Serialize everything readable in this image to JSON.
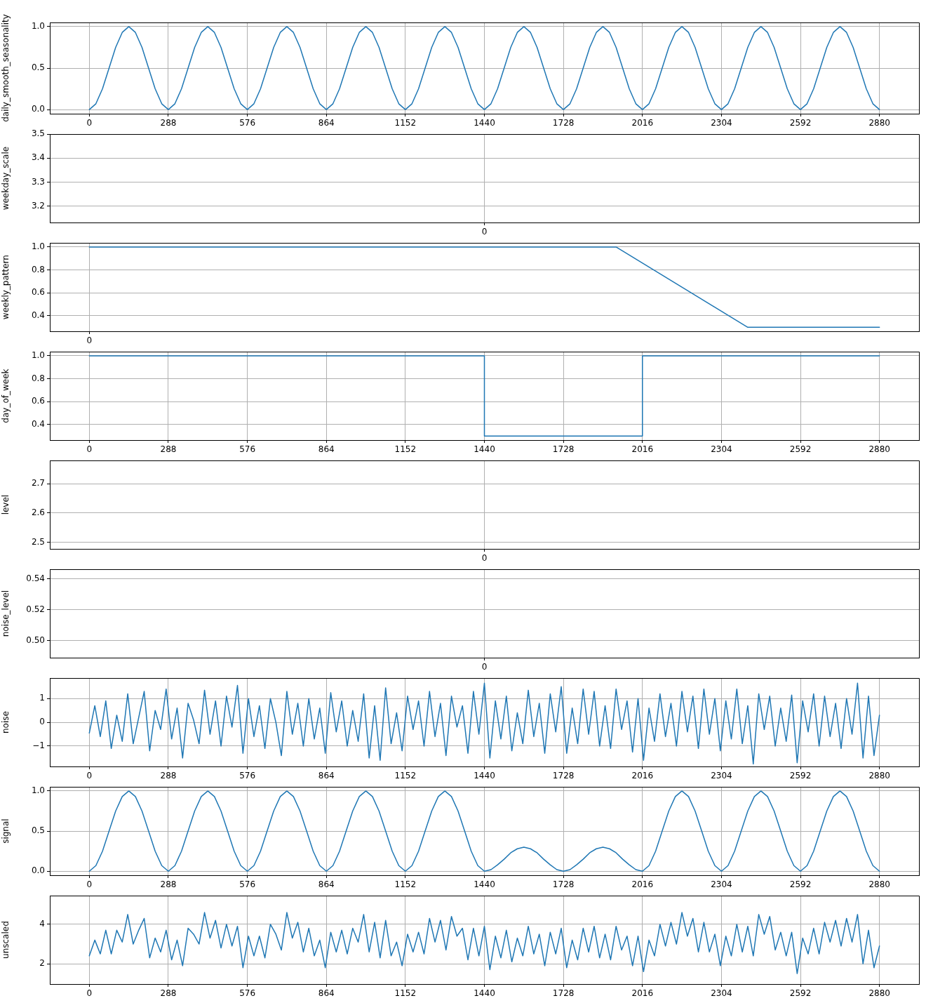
{
  "chart_data": [
    {
      "type": "line",
      "ylabel": "daily_smooth_seasonality",
      "color": "#1f77b4",
      "grid": true,
      "x": [
        0,
        24,
        48,
        72,
        96,
        120,
        144,
        168,
        192,
        216,
        240,
        264,
        288,
        312,
        336,
        360,
        384,
        408,
        432,
        456,
        480,
        504,
        528,
        552,
        576,
        600,
        624,
        648,
        672,
        696,
        720,
        744,
        768,
        792,
        816,
        840,
        864,
        888,
        912,
        936,
        960,
        984,
        1008,
        1032,
        1056,
        1080,
        1104,
        1128,
        1152,
        1176,
        1200,
        1224,
        1248,
        1272,
        1296,
        1320,
        1344,
        1368,
        1392,
        1416,
        1440,
        1464,
        1488,
        1512,
        1536,
        1560,
        1584,
        1608,
        1632,
        1656,
        1680,
        1704,
        1728,
        1752,
        1776,
        1800,
        1824,
        1848,
        1872,
        1896,
        1920,
        1944,
        1968,
        1992,
        2016,
        2040,
        2064,
        2088,
        2112,
        2136,
        2160,
        2184,
        2208,
        2232,
        2256,
        2280,
        2304,
        2328,
        2352,
        2376,
        2400,
        2424,
        2448,
        2472,
        2496,
        2520,
        2544,
        2568,
        2592,
        2616,
        2640,
        2664,
        2688,
        2712,
        2736,
        2760,
        2784,
        2808,
        2832,
        2856,
        2880
      ],
      "values": [
        0,
        0.07,
        0.25,
        0.5,
        0.75,
        0.93,
        1,
        0.93,
        0.75,
        0.5,
        0.25,
        0.07,
        0,
        0.07,
        0.25,
        0.5,
        0.75,
        0.93,
        1,
        0.93,
        0.75,
        0.5,
        0.25,
        0.07,
        0,
        0.07,
        0.25,
        0.5,
        0.75,
        0.93,
        1,
        0.93,
        0.75,
        0.5,
        0.25,
        0.07,
        0,
        0.07,
        0.25,
        0.5,
        0.75,
        0.93,
        1,
        0.93,
        0.75,
        0.5,
        0.25,
        0.07,
        0,
        0.07,
        0.25,
        0.5,
        0.75,
        0.93,
        1,
        0.93,
        0.75,
        0.5,
        0.25,
        0.07,
        0,
        0.07,
        0.25,
        0.5,
        0.75,
        0.93,
        1,
        0.93,
        0.75,
        0.5,
        0.25,
        0.07,
        0,
        0.07,
        0.25,
        0.5,
        0.75,
        0.93,
        1,
        0.93,
        0.75,
        0.5,
        0.25,
        0.07,
        0,
        0.07,
        0.25,
        0.5,
        0.75,
        0.93,
        1,
        0.93,
        0.75,
        0.5,
        0.25,
        0.07,
        0,
        0.07,
        0.25,
        0.5,
        0.75,
        0.93,
        1,
        0.93,
        0.75,
        0.5,
        0.25,
        0.07,
        0,
        0.07,
        0.25,
        0.5,
        0.75,
        0.93,
        1,
        0.93,
        0.75,
        0.5,
        0.25,
        0.07,
        0
      ],
      "xlim": [
        -144,
        3024
      ],
      "xticks": [
        0,
        288,
        576,
        864,
        1152,
        1440,
        1728,
        2016,
        2304,
        2592,
        2880
      ],
      "ylim": [
        -0.05,
        1.05
      ],
      "yticks": [
        {
          "value": 0,
          "label": "0.0"
        },
        {
          "value": 0.5,
          "label": "0.5"
        },
        {
          "value": 1,
          "label": "1.0"
        }
      ]
    },
    {
      "type": "line",
      "ylabel": "weekday_scale",
      "color": "#1f77b4",
      "grid": true,
      "categories": [
        "0"
      ],
      "ylim": [
        3.131,
        3.5
      ],
      "yticks": [
        3.2,
        3.3,
        3.4,
        3.5
      ]
    },
    {
      "type": "line",
      "ylabel": "weekly_pattern",
      "color": "#1f77b4",
      "grid": true,
      "categories": [
        "0",
        null,
        null,
        null,
        null,
        null,
        null,
        null,
        null,
        null,
        null,
        null,
        null
      ],
      "values": [
        1,
        1,
        1,
        1,
        1,
        1,
        1,
        1,
        1,
        0.65,
        0.3,
        0.3,
        0.3
      ],
      "ylim": [
        0.265,
        1.035
      ],
      "yticks": [
        0.4,
        0.6,
        0.8,
        {
          "value": 1,
          "label": "1.0"
        }
      ]
    },
    {
      "type": "step",
      "ylabel": "day_of_week",
      "color": "#1f77b4",
      "grid": true,
      "x": [
        0,
        1440,
        2016,
        2880
      ],
      "values": [
        1,
        0.3,
        1,
        1
      ],
      "xlim": [
        -144,
        3024
      ],
      "xticks": [
        0,
        288,
        576,
        864,
        1152,
        1440,
        1728,
        2016,
        2304,
        2592,
        2880
      ],
      "ylim": [
        0.265,
        1.035
      ],
      "yticks": [
        0.4,
        0.6,
        0.8,
        {
          "value": 1,
          "label": "1.0"
        }
      ]
    },
    {
      "type": "line",
      "ylabel": "level",
      "color": "#1f77b4",
      "grid": true,
      "categories": [
        "0"
      ],
      "ylim": [
        2.477,
        2.779
      ],
      "yticks": [
        2.5,
        2.6,
        2.7
      ]
    },
    {
      "type": "line",
      "ylabel": "noise_level",
      "color": "#1f77b4",
      "grid": true,
      "categories": [
        "0"
      ],
      "ylim": [
        0.489,
        0.546
      ],
      "yticks": [
        {
          "value": 0.5,
          "label": "0.50"
        },
        {
          "value": 0.52,
          "label": "0.52"
        },
        {
          "value": 0.54,
          "label": "0.54"
        }
      ]
    },
    {
      "type": "line",
      "ylabel": "noise",
      "color": "#1f77b4",
      "grid": true,
      "x": [
        0,
        20,
        40,
        60,
        80,
        100,
        120,
        140,
        160,
        180,
        200,
        220,
        240,
        260,
        280,
        300,
        320,
        340,
        360,
        380,
        400,
        420,
        440,
        460,
        480,
        500,
        520,
        540,
        560,
        580,
        600,
        620,
        640,
        660,
        680,
        700,
        720,
        740,
        760,
        780,
        800,
        820,
        840,
        860,
        880,
        900,
        920,
        940,
        960,
        980,
        1000,
        1020,
        1040,
        1060,
        1080,
        1100,
        1120,
        1140,
        1160,
        1180,
        1200,
        1220,
        1240,
        1260,
        1280,
        1300,
        1320,
        1340,
        1360,
        1380,
        1400,
        1420,
        1440,
        1460,
        1480,
        1500,
        1520,
        1540,
        1560,
        1580,
        1600,
        1620,
        1640,
        1660,
        1680,
        1700,
        1720,
        1740,
        1760,
        1780,
        1800,
        1820,
        1840,
        1860,
        1880,
        1900,
        1920,
        1940,
        1960,
        1980,
        2000,
        2020,
        2040,
        2060,
        2080,
        2100,
        2120,
        2140,
        2160,
        2180,
        2200,
        2220,
        2240,
        2260,
        2280,
        2300,
        2320,
        2340,
        2360,
        2380,
        2400,
        2420,
        2440,
        2460,
        2480,
        2500,
        2520,
        2540,
        2560,
        2580,
        2600,
        2620,
        2640,
        2660,
        2680,
        2700,
        2720,
        2740,
        2760,
        2780,
        2800,
        2820,
        2840,
        2860,
        2880
      ],
      "values": [
        -0.45,
        0.7,
        -0.6,
        0.9,
        -1.1,
        0.3,
        -0.8,
        1.2,
        -0.9,
        0.2,
        1.3,
        -1.2,
        0.5,
        -0.3,
        1.4,
        -0.7,
        0.6,
        -1.5,
        0.8,
        0.1,
        -0.9,
        1.35,
        -0.5,
        0.9,
        -1.0,
        1.1,
        -0.2,
        1.55,
        -1.3,
        1.0,
        -0.6,
        0.7,
        -1.1,
        1.0,
        0.0,
        -1.4,
        1.3,
        -0.5,
        0.8,
        -1.0,
        1.0,
        -0.7,
        0.6,
        -1.3,
        1.25,
        -0.4,
        0.9,
        -1.0,
        0.5,
        -0.8,
        1.2,
        -1.5,
        0.7,
        -1.6,
        1.45,
        -0.9,
        0.4,
        -1.2,
        1.1,
        -0.3,
        0.9,
        -1.0,
        1.3,
        -0.6,
        0.8,
        -1.4,
        1.1,
        -0.2,
        0.7,
        -1.3,
        1.3,
        -0.5,
        1.65,
        -1.5,
        0.9,
        -0.7,
        1.1,
        -1.2,
        0.4,
        -0.9,
        1.35,
        -0.6,
        0.8,
        -1.3,
        1.2,
        -0.4,
        1.5,
        -1.3,
        0.6,
        -0.9,
        1.4,
        -0.5,
        1.3,
        -1.0,
        0.7,
        -1.1,
        1.4,
        -0.3,
        0.9,
        -1.25,
        1.0,
        -1.6,
        0.6,
        -0.8,
        1.2,
        -0.6,
        0.8,
        -1.0,
        1.3,
        -0.4,
        1.1,
        -1.1,
        1.4,
        -0.5,
        1.0,
        -1.2,
        0.9,
        -0.7,
        1.4,
        -0.9,
        0.7,
        -1.75,
        1.2,
        -0.3,
        1.1,
        -1.0,
        0.6,
        -0.8,
        1.15,
        -1.7,
        0.9,
        -0.4,
        1.2,
        -1.0,
        1.1,
        -0.6,
        0.8,
        -1.1,
        1.0,
        -0.5,
        1.65,
        -1.5,
        1.1,
        -1.4,
        0.3
      ],
      "xlim": [
        -144,
        3024
      ],
      "xticks": [
        0,
        288,
        576,
        864,
        1152,
        1440,
        1728,
        2016,
        2304,
        2592,
        2880
      ],
      "ylim": [
        -1.857,
        1.857
      ],
      "yticks": [
        {
          "value": -1,
          "label": "−1"
        },
        0,
        1
      ]
    },
    {
      "type": "line",
      "ylabel": "signal",
      "color": "#1f77b4",
      "grid": true,
      "x": [
        0,
        24,
        48,
        72,
        96,
        120,
        144,
        168,
        192,
        216,
        240,
        264,
        288,
        312,
        336,
        360,
        384,
        408,
        432,
        456,
        480,
        504,
        528,
        552,
        576,
        600,
        624,
        648,
        672,
        696,
        720,
        744,
        768,
        792,
        816,
        840,
        864,
        888,
        912,
        936,
        960,
        984,
        1008,
        1032,
        1056,
        1080,
        1104,
        1128,
        1152,
        1176,
        1200,
        1224,
        1248,
        1272,
        1296,
        1320,
        1344,
        1368,
        1392,
        1416,
        1440,
        1464,
        1488,
        1512,
        1536,
        1560,
        1584,
        1608,
        1632,
        1656,
        1680,
        1704,
        1728,
        1752,
        1776,
        1800,
        1824,
        1848,
        1872,
        1896,
        1920,
        1944,
        1968,
        1992,
        2016,
        2040,
        2064,
        2088,
        2112,
        2136,
        2160,
        2184,
        2208,
        2232,
        2256,
        2280,
        2304,
        2328,
        2352,
        2376,
        2400,
        2424,
        2448,
        2472,
        2496,
        2520,
        2544,
        2568,
        2592,
        2616,
        2640,
        2664,
        2688,
        2712,
        2736,
        2760,
        2784,
        2808,
        2832,
        2856,
        2880
      ],
      "values": [
        0,
        0.07,
        0.25,
        0.5,
        0.75,
        0.93,
        1,
        0.93,
        0.75,
        0.5,
        0.25,
        0.07,
        0,
        0.07,
        0.25,
        0.5,
        0.75,
        0.93,
        1,
        0.93,
        0.75,
        0.5,
        0.25,
        0.07,
        0,
        0.07,
        0.25,
        0.5,
        0.75,
        0.93,
        1,
        0.93,
        0.75,
        0.5,
        0.25,
        0.07,
        0,
        0.07,
        0.25,
        0.5,
        0.75,
        0.93,
        1,
        0.93,
        0.75,
        0.5,
        0.25,
        0.07,
        0,
        0.07,
        0.25,
        0.5,
        0.75,
        0.93,
        1,
        0.93,
        0.75,
        0.5,
        0.25,
        0.07,
        0,
        0.02,
        0.08,
        0.15,
        0.23,
        0.28,
        0.3,
        0.28,
        0.23,
        0.15,
        0.08,
        0.02,
        0,
        0.02,
        0.08,
        0.15,
        0.23,
        0.28,
        0.3,
        0.28,
        0.23,
        0.15,
        0.08,
        0.02,
        0,
        0.07,
        0.25,
        0.5,
        0.75,
        0.93,
        1,
        0.93,
        0.75,
        0.5,
        0.25,
        0.07,
        0,
        0.07,
        0.25,
        0.5,
        0.75,
        0.93,
        1,
        0.93,
        0.75,
        0.5,
        0.25,
        0.07,
        0,
        0.07,
        0.25,
        0.5,
        0.75,
        0.93,
        1,
        0.93,
        0.75,
        0.5,
        0.25,
        0.07,
        0
      ],
      "xlim": [
        -144,
        3024
      ],
      "xticks": [
        0,
        288,
        576,
        864,
        1152,
        1440,
        1728,
        2016,
        2304,
        2592,
        2880
      ],
      "ylim": [
        -0.05,
        1.05
      ],
      "yticks": [
        {
          "value": 0,
          "label": "0.0"
        },
        {
          "value": 0.5,
          "label": "0.5"
        },
        {
          "value": 1,
          "label": "1.0"
        }
      ]
    },
    {
      "type": "line",
      "ylabel": "unscaled",
      "color": "#1f77b4",
      "grid": true,
      "x": [
        0,
        20,
        40,
        60,
        80,
        100,
        120,
        140,
        160,
        180,
        200,
        220,
        240,
        260,
        280,
        300,
        320,
        340,
        360,
        380,
        400,
        420,
        440,
        460,
        480,
        500,
        520,
        540,
        560,
        580,
        600,
        620,
        640,
        660,
        680,
        700,
        720,
        740,
        760,
        780,
        800,
        820,
        840,
        860,
        880,
        900,
        920,
        940,
        960,
        980,
        1000,
        1020,
        1040,
        1060,
        1080,
        1100,
        1120,
        1140,
        1160,
        1180,
        1200,
        1220,
        1240,
        1260,
        1280,
        1300,
        1320,
        1340,
        1360,
        1380,
        1400,
        1420,
        1440,
        1460,
        1480,
        1500,
        1520,
        1540,
        1560,
        1580,
        1600,
        1620,
        1640,
        1660,
        1680,
        1700,
        1720,
        1740,
        1760,
        1780,
        1800,
        1820,
        1840,
        1860,
        1880,
        1900,
        1920,
        1940,
        1960,
        1980,
        2000,
        2020,
        2040,
        2060,
        2080,
        2100,
        2120,
        2140,
        2160,
        2180,
        2200,
        2220,
        2240,
        2260,
        2280,
        2300,
        2320,
        2340,
        2360,
        2380,
        2400,
        2420,
        2440,
        2460,
        2480,
        2500,
        2520,
        2540,
        2560,
        2580,
        2600,
        2620,
        2640,
        2660,
        2680,
        2700,
        2720,
        2740,
        2760,
        2780,
        2800,
        2820,
        2840,
        2860,
        2880
      ],
      "values": [
        2.4,
        3.2,
        2.5,
        3.7,
        2.5,
        3.7,
        3.1,
        4.5,
        3.0,
        3.7,
        4.3,
        2.3,
        3.3,
        2.6,
        3.7,
        2.2,
        3.2,
        1.9,
        3.8,
        3.5,
        3.0,
        4.6,
        3.3,
        4.2,
        2.8,
        4.0,
        2.9,
        3.9,
        1.8,
        3.4,
        2.4,
        3.4,
        2.3,
        4.0,
        3.5,
        2.7,
        4.6,
        3.3,
        4.1,
        2.6,
        3.8,
        2.4,
        3.2,
        1.8,
        3.6,
        2.6,
        3.7,
        2.5,
        3.8,
        3.1,
        4.5,
        2.6,
        4.1,
        2.3,
        4.2,
        2.4,
        3.1,
        1.9,
        3.5,
        2.6,
        3.6,
        2.5,
        4.3,
        3.1,
        4.2,
        2.7,
        4.4,
        3.4,
        3.8,
        2.2,
        3.8,
        2.4,
        3.9,
        1.7,
        3.4,
        2.3,
        3.7,
        2.1,
        3.3,
        2.4,
        3.9,
        2.5,
        3.5,
        1.9,
        3.6,
        2.5,
        3.8,
        1.8,
        3.2,
        2.2,
        3.8,
        2.6,
        3.9,
        2.3,
        3.5,
        2.2,
        3.9,
        2.7,
        3.4,
        1.9,
        3.4,
        1.6,
        3.2,
        2.4,
        4.0,
        2.9,
        4.1,
        3.0,
        4.6,
        3.4,
        4.3,
        2.6,
        4.1,
        2.6,
        3.5,
        1.9,
        3.4,
        2.4,
        4.0,
        2.6,
        3.9,
        2.4,
        4.5,
        3.5,
        4.4,
        2.7,
        3.6,
        2.4,
        3.6,
        1.5,
        3.3,
        2.5,
        3.8,
        2.5,
        4.1,
        3.1,
        4.2,
        2.9,
        4.3,
        3.1,
        4.5,
        2.0,
        3.7,
        1.8,
        2.9
      ],
      "xlim": [
        -144,
        3024
      ],
      "xticks": [
        0,
        288,
        576,
        864,
        1152,
        1440,
        1728,
        2016,
        2304,
        2592,
        2880
      ],
      "ylim": [
        0.97,
        5.45
      ],
      "yticks": [
        2,
        4
      ]
    }
  ]
}
